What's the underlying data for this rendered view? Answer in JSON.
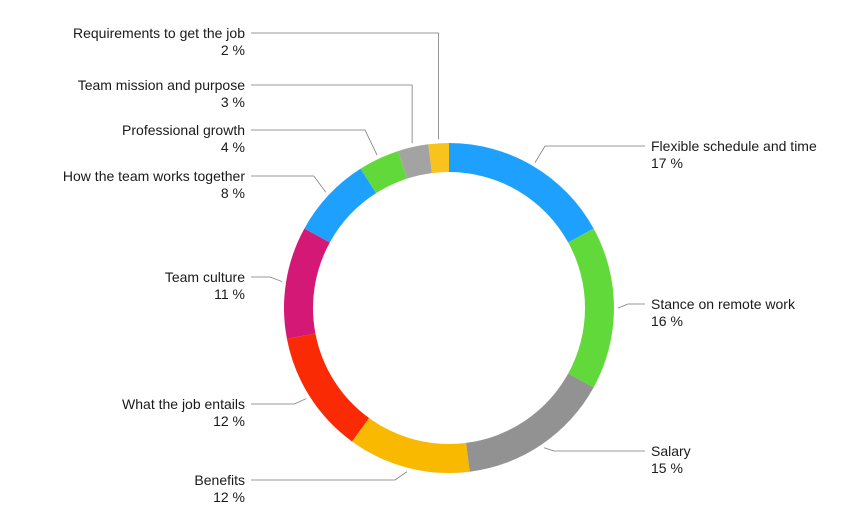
{
  "chart_data": {
    "type": "pie",
    "variant": "donut",
    "unit": "%",
    "slices": [
      {
        "label": "Flexible schedule and time",
        "value": 17,
        "value_text": "17 %",
        "color": "#1ea1fe"
      },
      {
        "label": "Stance on remote work",
        "value": 16,
        "value_text": "16 %",
        "color": "#62d93b"
      },
      {
        "label": "Salary",
        "value": 15,
        "value_text": "15 %",
        "color": "#929292"
      },
      {
        "label": "Benefits",
        "value": 12,
        "value_text": "12 %",
        "color": "#f9b900"
      },
      {
        "label": "What the job entails",
        "value": 12,
        "value_text": "12 %",
        "color": "#fa2a05"
      },
      {
        "label": "Team culture",
        "value": 11,
        "value_text": "11 %",
        "color": "#d41876"
      },
      {
        "label": "How the team works together",
        "value": 8,
        "value_text": "8 %",
        "color": "#1ea1fe"
      },
      {
        "label": "Professional growth",
        "value": 4,
        "value_text": "4 %",
        "color": "#62d93b"
      },
      {
        "label": "Team mission and purpose",
        "value": 3,
        "value_text": "3 %",
        "color": "#a3a3a3"
      },
      {
        "label": "Requirements to get the job",
        "value": 2,
        "value_text": "2 %",
        "color": "#f9c31e"
      }
    ]
  }
}
